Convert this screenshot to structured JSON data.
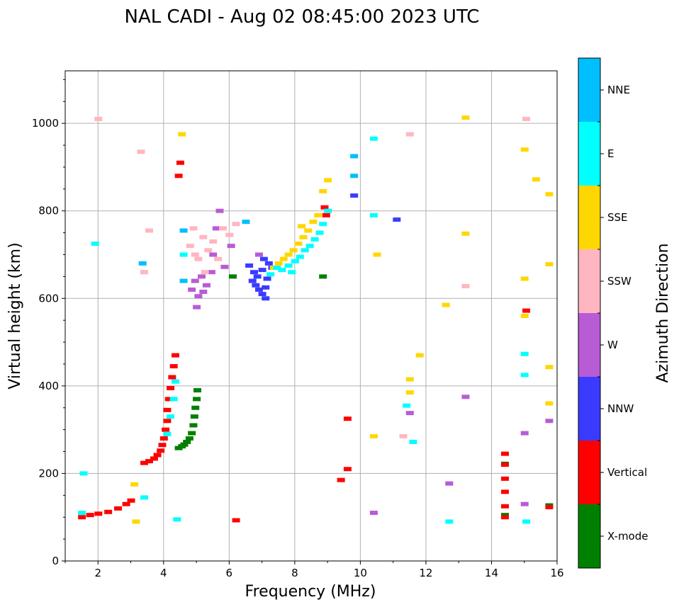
{
  "chart_data": {
    "type": "scatter",
    "title": "NAL CADI - Aug 02 08:45:00 2023 UTC",
    "xlabel": "Frequency (MHz)",
    "ylabel": "Virtual height (km)",
    "xlim": [
      1,
      16
    ],
    "ylim": [
      0,
      1120
    ],
    "xticks": [
      2,
      4,
      6,
      8,
      10,
      12,
      14,
      16
    ],
    "yticks": [
      0,
      200,
      400,
      600,
      800,
      1000
    ],
    "grid": true,
    "colorbar": {
      "title": "Azimuth Direction",
      "categories": [
        {
          "name": "X-mode",
          "color": "#008000"
        },
        {
          "name": "Vertical",
          "color": "#ff0000"
        },
        {
          "name": "NNW",
          "color": "#3b3bff"
        },
        {
          "name": "W",
          "color": "#b85cd6"
        },
        {
          "name": "SSW",
          "color": "#ffb6c1"
        },
        {
          "name": "SSE",
          "color": "#ffd700"
        },
        {
          "name": "E",
          "color": "#00ffff"
        },
        {
          "name": "NNE",
          "color": "#00bfff"
        }
      ]
    },
    "series": [
      {
        "name": "X-mode",
        "points": [
          [
            4.45,
            258
          ],
          [
            4.55,
            262
          ],
          [
            4.62,
            266
          ],
          [
            4.7,
            272
          ],
          [
            4.78,
            280
          ],
          [
            4.85,
            292
          ],
          [
            4.9,
            310
          ],
          [
            4.93,
            330
          ],
          [
            4.96,
            350
          ],
          [
            5.0,
            370
          ],
          [
            5.02,
            390
          ],
          [
            6.1,
            650
          ],
          [
            8.85,
            650
          ],
          [
            14.4,
            222
          ],
          [
            14.4,
            105
          ],
          [
            15.75,
            127
          ]
        ]
      },
      {
        "name": "Vertical",
        "points": [
          [
            1.5,
            100
          ],
          [
            1.75,
            105
          ],
          [
            2.0,
            108
          ],
          [
            2.3,
            112
          ],
          [
            2.6,
            120
          ],
          [
            2.85,
            130
          ],
          [
            3.0,
            138
          ],
          [
            3.4,
            224
          ],
          [
            3.55,
            228
          ],
          [
            3.7,
            234
          ],
          [
            3.8,
            242
          ],
          [
            3.9,
            252
          ],
          [
            3.95,
            265
          ],
          [
            4.0,
            280
          ],
          [
            4.05,
            300
          ],
          [
            4.1,
            320
          ],
          [
            4.1,
            345
          ],
          [
            4.15,
            370
          ],
          [
            4.2,
            395
          ],
          [
            4.25,
            420
          ],
          [
            4.3,
            445
          ],
          [
            4.35,
            470
          ],
          [
            4.45,
            880
          ],
          [
            4.5,
            910
          ],
          [
            6.2,
            93
          ],
          [
            9.4,
            185
          ],
          [
            9.6,
            325
          ],
          [
            9.6,
            210
          ],
          [
            14.4,
            245
          ],
          [
            14.4,
            220
          ],
          [
            14.4,
            188
          ],
          [
            14.4,
            158
          ],
          [
            14.4,
            125
          ],
          [
            14.4,
            100
          ],
          [
            15.75,
            123
          ],
          [
            15.05,
            572
          ],
          [
            8.95,
            790
          ],
          [
            8.9,
            808
          ]
        ]
      },
      {
        "name": "NNW",
        "points": [
          [
            6.7,
            640
          ],
          [
            6.8,
            630
          ],
          [
            6.9,
            620
          ],
          [
            7.0,
            610
          ],
          [
            7.1,
            625
          ],
          [
            6.75,
            660
          ],
          [
            6.85,
            650
          ],
          [
            7.0,
            665
          ],
          [
            7.15,
            645
          ],
          [
            7.2,
            680
          ],
          [
            6.6,
            675
          ],
          [
            7.05,
            690
          ],
          [
            7.3,
            670
          ],
          [
            7.1,
            600
          ],
          [
            11.1,
            780
          ],
          [
            9.8,
            835
          ]
        ]
      },
      {
        "name": "W",
        "points": [
          [
            4.85,
            620
          ],
          [
            4.95,
            640
          ],
          [
            5.05,
            605
          ],
          [
            5.15,
            650
          ],
          [
            5.2,
            615
          ],
          [
            5.3,
            630
          ],
          [
            5.45,
            660
          ],
          [
            5.5,
            700
          ],
          [
            5.6,
            760
          ],
          [
            5.7,
            800
          ],
          [
            5.85,
            672
          ],
          [
            6.05,
            720
          ],
          [
            5.0,
            580
          ],
          [
            6.9,
            700
          ],
          [
            10.4,
            110
          ],
          [
            11.5,
            338
          ],
          [
            12.7,
            177
          ],
          [
            13.2,
            375
          ],
          [
            15.0,
            292
          ],
          [
            15.0,
            130
          ],
          [
            15.75,
            320
          ]
        ]
      },
      {
        "name": "SSW",
        "points": [
          [
            4.8,
            720
          ],
          [
            4.95,
            700
          ],
          [
            5.05,
            690
          ],
          [
            5.2,
            740
          ],
          [
            5.35,
            710
          ],
          [
            5.5,
            730
          ],
          [
            5.65,
            690
          ],
          [
            5.8,
            760
          ],
          [
            6.0,
            745
          ],
          [
            6.2,
            770
          ],
          [
            4.9,
            760
          ],
          [
            5.25,
            660
          ],
          [
            3.4,
            660
          ],
          [
            3.55,
            755
          ],
          [
            3.3,
            935
          ],
          [
            2.0,
            1010
          ],
          [
            13.2,
            628
          ],
          [
            15.05,
            1010
          ],
          [
            11.5,
            975
          ],
          [
            11.3,
            285
          ]
        ]
      },
      {
        "name": "SSE",
        "points": [
          [
            7.35,
            670
          ],
          [
            7.5,
            680
          ],
          [
            7.65,
            690
          ],
          [
            7.8,
            700
          ],
          [
            7.95,
            710
          ],
          [
            8.1,
            725
          ],
          [
            8.25,
            740
          ],
          [
            8.4,
            755
          ],
          [
            8.55,
            775
          ],
          [
            8.7,
            790
          ],
          [
            8.85,
            845
          ],
          [
            9.0,
            870
          ],
          [
            8.2,
            765
          ],
          [
            10.5,
            700
          ],
          [
            10.4,
            285
          ],
          [
            12.6,
            585
          ],
          [
            13.2,
            1013
          ],
          [
            13.2,
            748
          ],
          [
            15.0,
            940
          ],
          [
            15.0,
            645
          ],
          [
            15.0,
            560
          ],
          [
            15.35,
            872
          ],
          [
            15.75,
            838
          ],
          [
            15.75,
            678
          ],
          [
            15.75,
            443
          ],
          [
            15.75,
            360
          ],
          [
            11.5,
            415
          ],
          [
            11.5,
            385
          ],
          [
            11.8,
            470
          ],
          [
            3.1,
            175
          ],
          [
            3.15,
            90
          ],
          [
            4.55,
            975
          ]
        ]
      },
      {
        "name": "E",
        "points": [
          [
            7.25,
            655
          ],
          [
            7.45,
            670
          ],
          [
            7.6,
            665
          ],
          [
            7.8,
            675
          ],
          [
            8.0,
            685
          ],
          [
            8.15,
            695
          ],
          [
            8.3,
            710
          ],
          [
            8.45,
            720
          ],
          [
            8.6,
            735
          ],
          [
            8.75,
            750
          ],
          [
            8.85,
            770
          ],
          [
            9.0,
            800
          ],
          [
            7.9,
            660
          ],
          [
            4.4,
            95
          ],
          [
            4.1,
            290
          ],
          [
            4.2,
            330
          ],
          [
            4.3,
            370
          ],
          [
            4.35,
            410
          ],
          [
            4.6,
            700
          ],
          [
            10.4,
            965
          ],
          [
            10.4,
            790
          ],
          [
            11.4,
            355
          ],
          [
            11.6,
            272
          ],
          [
            12.7,
            90
          ],
          [
            15.0,
            473
          ],
          [
            15.0,
            425
          ],
          [
            15.05,
            90
          ],
          [
            1.5,
            110
          ],
          [
            1.55,
            200
          ],
          [
            1.9,
            725
          ],
          [
            3.4,
            145
          ]
        ]
      },
      {
        "name": "NNE",
        "points": [
          [
            9.8,
            925
          ],
          [
            9.8,
            880
          ],
          [
            6.5,
            775
          ],
          [
            4.6,
            640
          ],
          [
            4.6,
            755
          ],
          [
            3.35,
            680
          ]
        ]
      }
    ]
  }
}
